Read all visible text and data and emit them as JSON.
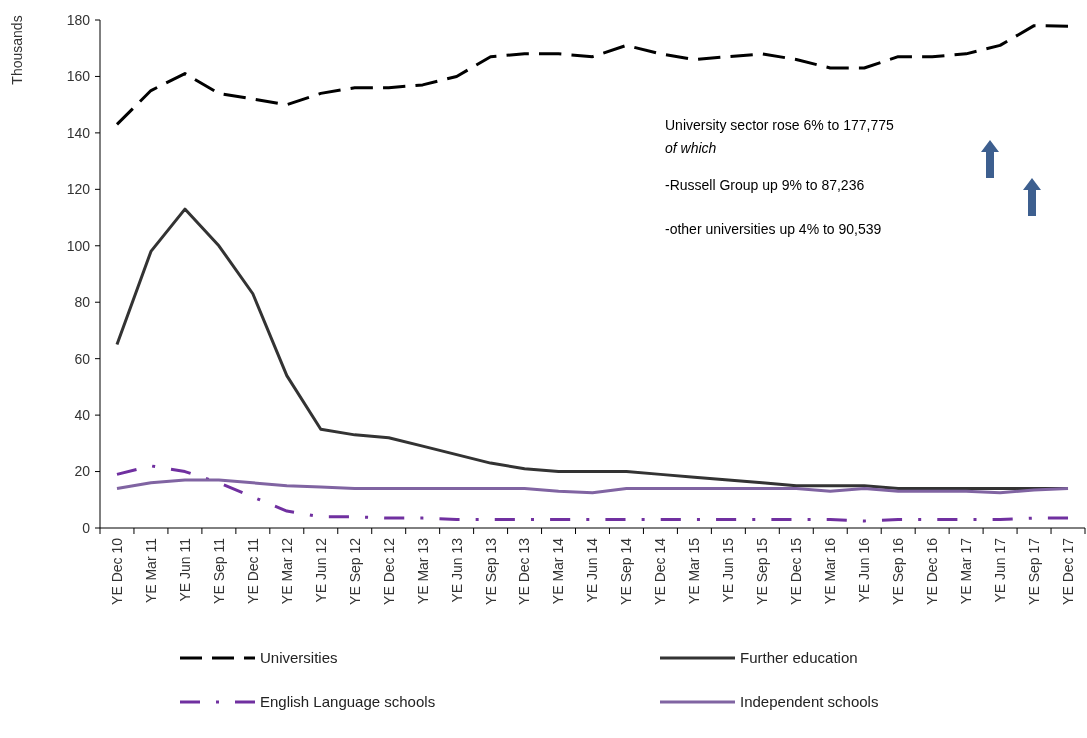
{
  "chart_data": {
    "type": "line",
    "ylabel": "Thousands",
    "categories": [
      "YE Dec 10",
      "YE Mar 11",
      "YE Jun 11",
      "YE Sep 11",
      "YE Dec 11",
      "YE Mar 12",
      "YE Jun 12",
      "YE Sep 12",
      "YE Dec 12",
      "YE Mar 13",
      "YE Jun 13",
      "YE Sep 13",
      "YE Dec 13",
      "YE Mar 14",
      "YE Jun 14",
      "YE Sep 14",
      "YE Dec 14",
      "YE Mar 15",
      "YE Jun 15",
      "YE Sep 15",
      "YE Dec 15",
      "YE Mar 16",
      "YE Jun 16",
      "YE Sep 16",
      "YE Dec 16",
      "YE Mar 17",
      "YE Jun 17",
      "YE Sep 17",
      "YE Dec 17"
    ],
    "series": [
      {
        "name": "Universities",
        "color": "#000000",
        "line_style": "dashed",
        "values": [
          143,
          155,
          161,
          154,
          152,
          150,
          154,
          156,
          156,
          157,
          160,
          167,
          168,
          168,
          167,
          171,
          168,
          166,
          167,
          168,
          166,
          163,
          163,
          167,
          167,
          168,
          171,
          178,
          177.8
        ]
      },
      {
        "name": "Further education",
        "color": "#333333",
        "line_style": "solid",
        "values": [
          65,
          98,
          113,
          100,
          83,
          54,
          35,
          33,
          32,
          29,
          26,
          23,
          21,
          20,
          20,
          20,
          19,
          18,
          17,
          16,
          15,
          15,
          15,
          14,
          14,
          14,
          14,
          14,
          14
        ]
      },
      {
        "name": "English Language schools",
        "color": "#7030a0",
        "line_style": "dashdot",
        "values": [
          19,
          22,
          20,
          16,
          11,
          6,
          4,
          4,
          3.5,
          3.5,
          3,
          3,
          3,
          3,
          3,
          3,
          3,
          3,
          3,
          3,
          3,
          3,
          2.5,
          3,
          3,
          3,
          3,
          3.5,
          3.5
        ]
      },
      {
        "name": "Independent schools",
        "color": "#8064a2",
        "line_style": "solid",
        "values": [
          14,
          16,
          17,
          17,
          16,
          15,
          14.5,
          14,
          14,
          14,
          14,
          14,
          14,
          13,
          12.5,
          14,
          14,
          14,
          14,
          14,
          14,
          13,
          14,
          13,
          13,
          13,
          12.5,
          13.5,
          14
        ]
      }
    ],
    "ylim": [
      0,
      180
    ],
    "yticks": [
      0,
      20,
      40,
      60,
      80,
      100,
      120,
      140,
      160,
      180
    ],
    "grid": false,
    "legend": "bottom",
    "marker": "none",
    "annotations": [
      "University sector rose  6% to 177,775",
      "of which",
      "-Russell Group up 9% to 87,236",
      "-other universities up 4% to 90,539"
    ]
  }
}
